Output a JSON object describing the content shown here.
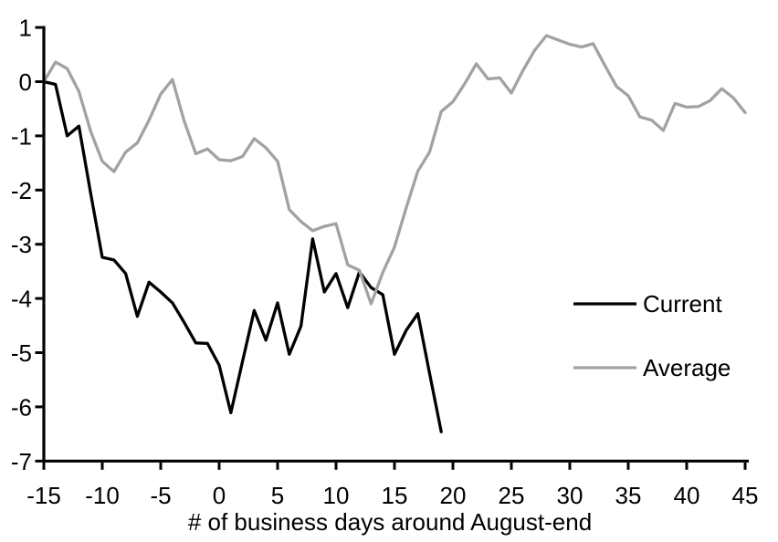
{
  "chart_data": {
    "type": "line",
    "title": "",
    "xlabel": "# of business days around August-end",
    "ylabel": "",
    "xlim": [
      -15,
      45
    ],
    "ylim": [
      -7,
      1
    ],
    "x_ticks": [
      -15,
      -10,
      -5,
      0,
      5,
      10,
      15,
      20,
      25,
      30,
      35,
      40,
      45
    ],
    "y_ticks": [
      1,
      0,
      -1,
      -2,
      -3,
      -4,
      -5,
      -6,
      -7
    ],
    "grid": false,
    "legend_position": "right-middle",
    "axis_color": "#000000",
    "series": [
      {
        "name": "Current",
        "color": "#000000",
        "x_start": -15,
        "x_step": 1,
        "values": [
          0,
          -0.05,
          -1.0,
          -0.82,
          -2.05,
          -3.24,
          -3.29,
          -3.54,
          -4.33,
          -3.7,
          -3.88,
          -4.08,
          -4.44,
          -4.82,
          -4.83,
          -5.23,
          -6.11,
          -5.16,
          -4.22,
          -4.77,
          -4.08,
          -5.03,
          -4.51,
          -2.9,
          -3.88,
          -3.54,
          -4.17,
          -3.51,
          -3.8,
          -3.93,
          -5.03,
          -4.59,
          -4.28,
          -5.38,
          -6.46
        ]
      },
      {
        "name": "Average",
        "color": "#a2a2a2",
        "x_start": -15,
        "x_step": 1,
        "values": [
          0,
          0.36,
          0.24,
          -0.18,
          -0.91,
          -1.47,
          -1.66,
          -1.3,
          -1.13,
          -0.71,
          -0.23,
          0.04,
          -0.72,
          -1.33,
          -1.24,
          -1.44,
          -1.46,
          -1.38,
          -1.05,
          -1.22,
          -1.47,
          -2.36,
          -2.58,
          -2.75,
          -2.67,
          -2.62,
          -3.38,
          -3.48,
          -4.1,
          -3.52,
          -3.05,
          -2.33,
          -1.65,
          -1.3,
          -0.55,
          -0.37,
          -0.04,
          0.33,
          0.05,
          0.07,
          -0.21,
          0.21,
          0.58,
          0.85,
          0.77,
          0.69,
          0.64,
          0.7,
          0.3,
          -0.09,
          -0.26,
          -0.65,
          -0.71,
          -0.9,
          -0.4,
          -0.47,
          -0.46,
          -0.35,
          -0.13,
          -0.3,
          -0.57
        ]
      }
    ]
  }
}
